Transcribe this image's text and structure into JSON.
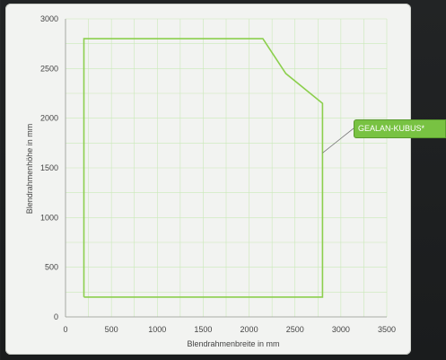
{
  "chart_data": {
    "type": "line",
    "title": "",
    "xlabel": "Blendrahmenbreite in mm",
    "ylabel": "Blendrahmenhöhe in mm",
    "xlim": [
      0,
      3500
    ],
    "ylim": [
      0,
      3000
    ],
    "x_ticks": [
      "0",
      "500",
      "1000",
      "1500",
      "2000",
      "2500",
      "3000",
      "3500"
    ],
    "y_ticks": [
      "0",
      "500",
      "1000",
      "1500",
      "2000",
      "2500",
      "3000"
    ],
    "grid": true,
    "series": [
      {
        "name": "GEALAN-KUBUS*",
        "color": "#8ccf4d",
        "x": [
          200,
          200,
          2150,
          2400,
          2800,
          2800,
          200
        ],
        "y": [
          200,
          2800,
          2800,
          2450,
          2150,
          200,
          200
        ]
      }
    ],
    "legend": {
      "label": "GEALAN-KUBUS*",
      "placement": "right",
      "background": "#78c242"
    }
  }
}
